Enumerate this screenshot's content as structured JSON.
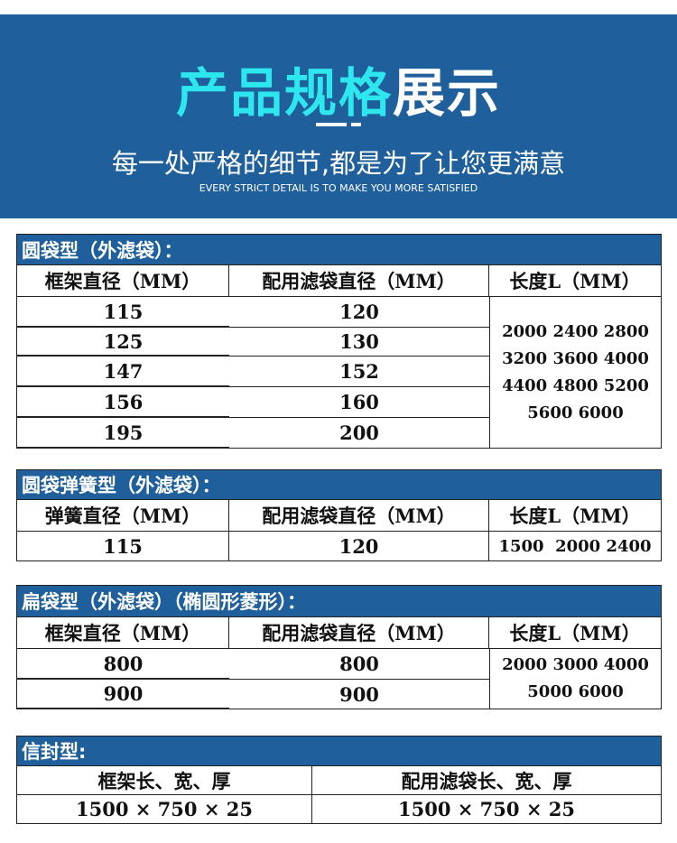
{
  "banner": {
    "title_cyan": "产品规格",
    "title_white": "展示",
    "subtitle": "每一处严格的细节,都是为了让您更满意",
    "subtitle_en": "EVERY STRICT DETAIL IS TO MAKE YOU MORE SATISFIED",
    "bg_color": "#1f5f9b",
    "accent_color": "#2ee6ee"
  },
  "tables": [
    {
      "title": "圆袋型（外滤袋）：",
      "headers": [
        "框架直径（MM）",
        "配用滤袋直径（MM）",
        "长度L（MM）"
      ],
      "rows": [
        [
          "115",
          "120"
        ],
        [
          "125",
          "130"
        ],
        [
          "147",
          "152"
        ],
        [
          "156",
          "160"
        ],
        [
          "195",
          "200"
        ]
      ],
      "length_lines": [
        "2000 2400 2800",
        "3200 3600 4000",
        "4400 4800 5200",
        "5600 6000"
      ]
    },
    {
      "title": "圆袋弹簧型（外滤袋）：",
      "headers": [
        "弹簧直径（MM）",
        "配用滤袋直径（MM）",
        "长度L（MM）"
      ],
      "rows": [
        [
          "115",
          "120",
          "1500  2000 2400"
        ]
      ]
    },
    {
      "title": "扁袋型（外滤袋）（椭圆形菱形）：",
      "headers": [
        "框架直径（MM）",
        "配用滤袋直径（MM）",
        "长度L（MM）"
      ],
      "rows": [
        [
          "800",
          "800"
        ],
        [
          "900",
          "900"
        ]
      ],
      "length_lines": [
        "2000 3000 4000",
        "5000 6000"
      ]
    },
    {
      "title": "信封型:",
      "headers": [
        "框架长、宽、厚",
        "配用滤袋长、宽、厚"
      ],
      "rows": [
        [
          "1500 × 750 × 25",
          "1500 × 750 × 25"
        ]
      ]
    }
  ]
}
